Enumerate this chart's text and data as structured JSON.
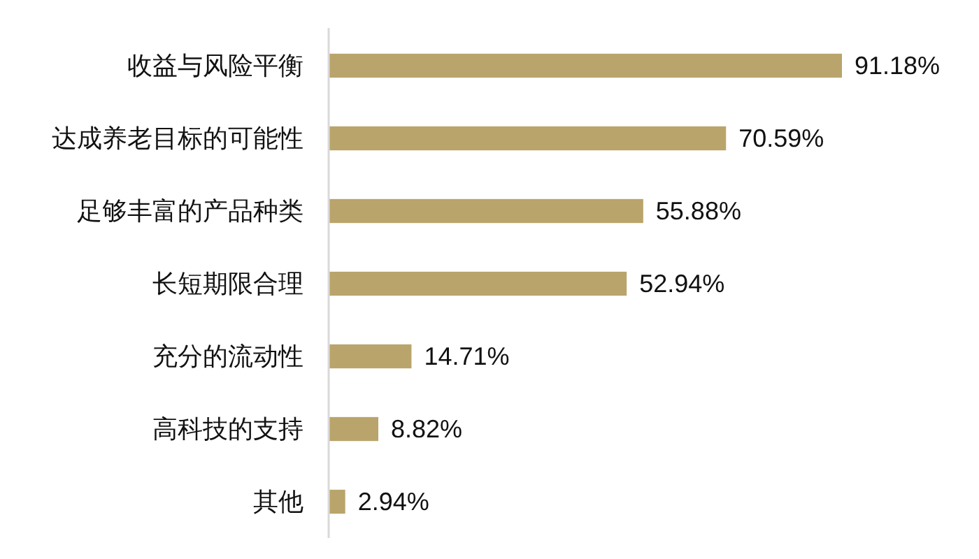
{
  "chart_data": {
    "type": "bar",
    "orientation": "horizontal",
    "categories": [
      "收益与风险平衡",
      "达成养老目标的可能性",
      "足够丰富的产品种类",
      "长短期限合理",
      "充分的流动性",
      "高科技的支持",
      "其他"
    ],
    "values": [
      91.18,
      70.59,
      55.88,
      52.94,
      14.71,
      8.82,
      2.94
    ],
    "value_labels": [
      "91.18%",
      "70.59%",
      "55.88%",
      "52.94%",
      "14.71%",
      "8.82%",
      "2.94%"
    ],
    "color": "#b9a46b"
  }
}
